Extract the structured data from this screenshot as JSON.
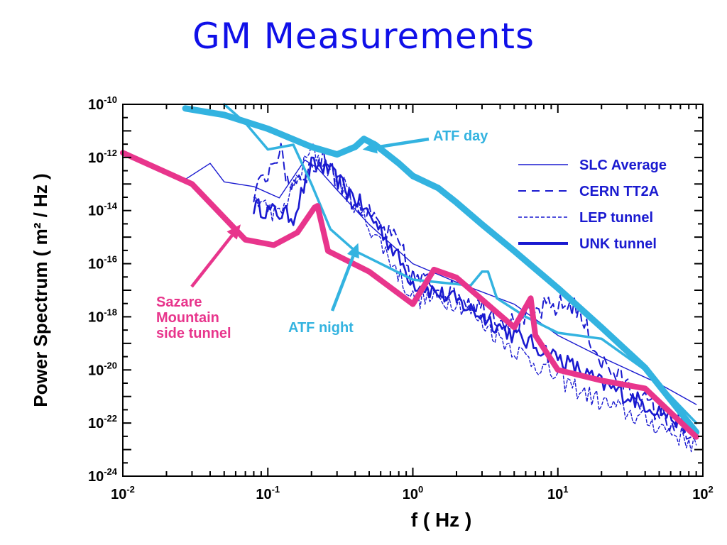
{
  "slide": {
    "title": "GM Measurements"
  },
  "colors": {
    "title": "#1010e8",
    "atf": "#33b3e0",
    "sazare": "#e8358c",
    "measured": "#1a1ad0"
  },
  "chart_data": {
    "type": "line",
    "title": "GM Measurements",
    "xlabel": "f  ( Hz )",
    "ylabel": "Power Spectrum ( m² / Hz )",
    "x_scale": "log",
    "y_scale": "log",
    "xlim": [
      0.01,
      100
    ],
    "ylim": [
      1e-24,
      1e-10
    ],
    "grid": false,
    "legend_position": "top-right",
    "x_ticks": [
      {
        "value": 0.01,
        "base": "10",
        "exp": "-2"
      },
      {
        "value": 0.1,
        "base": "10",
        "exp": "-1"
      },
      {
        "value": 1,
        "base": "10",
        "exp": "0"
      },
      {
        "value": 10,
        "base": "10",
        "exp": "1"
      },
      {
        "value": 100,
        "base": "10",
        "exp": "2"
      }
    ],
    "y_ticks": [
      {
        "value": 1e-10,
        "base": "10",
        "exp": "-10"
      },
      {
        "value": 1e-12,
        "base": "10",
        "exp": "-12"
      },
      {
        "value": 1e-14,
        "base": "10",
        "exp": "-14"
      },
      {
        "value": 1e-16,
        "base": "10",
        "exp": "-16"
      },
      {
        "value": 1e-18,
        "base": "10",
        "exp": "-18"
      },
      {
        "value": 1e-20,
        "base": "10",
        "exp": "-20"
      },
      {
        "value": 1e-22,
        "base": "10",
        "exp": "-22"
      },
      {
        "value": 1e-24,
        "base": "10",
        "exp": "-24"
      }
    ],
    "annotations": [
      {
        "id": "atf-day",
        "lines": [
          "ATF day"
        ],
        "color": "#33b3e0",
        "point_at": [
          0.45,
          2e-12
        ]
      },
      {
        "id": "atf-night",
        "lines": [
          "ATF night"
        ],
        "color": "#33b3e0",
        "point_at": [
          0.42,
          6e-16
        ]
      },
      {
        "id": "sazare",
        "lines": [
          "Sazare",
          "Mountain",
          "side tunnel"
        ],
        "color": "#e8358c",
        "point_at": [
          0.065,
          3e-15
        ]
      }
    ],
    "legend": [
      {
        "label": "SLC  Average",
        "style": "solid"
      },
      {
        "label": "CERN TT2A",
        "style": "dashed"
      },
      {
        "label": "LEP tunnel",
        "style": "dotted"
      },
      {
        "label": "UNK tunnel",
        "style": "thick"
      }
    ],
    "series": [
      {
        "id": "atf-day",
        "color": "#33b3e0",
        "width": 9,
        "style": "solid",
        "points": [
          [
            0.027,
            7e-11
          ],
          [
            0.05,
            4e-11
          ],
          [
            0.1,
            1.2e-11
          ],
          [
            0.2,
            2.5e-12
          ],
          [
            0.3,
            1.3e-12
          ],
          [
            0.4,
            2.5e-12
          ],
          [
            0.46,
            5e-12
          ],
          [
            0.55,
            3e-12
          ],
          [
            0.8,
            6e-13
          ],
          [
            1.0,
            2e-13
          ],
          [
            1.5,
            7e-14
          ],
          [
            2,
            2e-14
          ],
          [
            3,
            3e-15
          ],
          [
            5,
            3e-16
          ],
          [
            10,
            1.2e-17
          ],
          [
            20,
            4e-19
          ],
          [
            40,
            1.2e-20
          ],
          [
            90,
            4.5e-23
          ]
        ]
      },
      {
        "id": "atf-night",
        "color": "#33b3e0",
        "width": 3.5,
        "style": "solid",
        "points": [
          [
            0.05,
            1e-10
          ],
          [
            0.07,
            2e-11
          ],
          [
            0.1,
            2e-12
          ],
          [
            0.15,
            3e-12
          ],
          [
            0.2,
            1e-13
          ],
          [
            0.27,
            2e-15
          ],
          [
            0.4,
            3e-16
          ],
          [
            0.6,
            1e-16
          ],
          [
            1,
            2.5e-17
          ],
          [
            1.5,
            2e-17
          ],
          [
            2.5,
            1.5e-17
          ],
          [
            3,
            5e-17
          ],
          [
            3.3,
            5e-17
          ],
          [
            3.8,
            5e-18
          ],
          [
            6,
            1e-18
          ],
          [
            10,
            2.5e-19
          ],
          [
            20,
            1.5e-19
          ],
          [
            40,
            1e-20
          ],
          [
            90,
            1e-22
          ]
        ]
      },
      {
        "id": "sazare",
        "color": "#e8358c",
        "width": 8,
        "style": "solid",
        "points": [
          [
            0.01,
            1.5e-12
          ],
          [
            0.03,
            1e-13
          ],
          [
            0.07,
            8e-16
          ],
          [
            0.11,
            5e-16
          ],
          [
            0.16,
            1.5e-15
          ],
          [
            0.21,
            1.3e-14
          ],
          [
            0.22,
            1.5e-14
          ],
          [
            0.26,
            3e-16
          ],
          [
            0.5,
            5e-17
          ],
          [
            1,
            3e-18
          ],
          [
            1.4,
            6e-17
          ],
          [
            2,
            3e-17
          ],
          [
            5,
            4e-19
          ],
          [
            6.5,
            5e-18
          ],
          [
            7,
            2e-19
          ],
          [
            10,
            1e-20
          ],
          [
            20,
            4e-21
          ],
          [
            40,
            2e-21
          ],
          [
            90,
            3e-23
          ]
        ]
      },
      {
        "id": "slc-average",
        "color": "#1a1ad0",
        "width": 1.4,
        "style": "solid",
        "points": [
          [
            0.027,
            1.5e-13
          ],
          [
            0.04,
            6e-13
          ],
          [
            0.05,
            1.2e-13
          ],
          [
            0.08,
            8e-14
          ],
          [
            0.12,
            3e-14
          ],
          [
            0.18,
            8e-13
          ],
          [
            0.22,
            4e-13
          ],
          [
            0.3,
            6e-14
          ],
          [
            0.5,
            3e-15
          ],
          [
            1,
            1e-16
          ],
          [
            2,
            2e-17
          ],
          [
            5,
            3e-18
          ],
          [
            10,
            2e-19
          ],
          [
            20,
            3e-20
          ],
          [
            50,
            3e-21
          ],
          [
            90,
            5e-22
          ]
        ]
      },
      {
        "id": "cern-tt2a",
        "color": "#1a1ad0",
        "width": 2,
        "style": "dashed",
        "noise": 0.9,
        "points": [
          [
            0.08,
            3e-14
          ],
          [
            0.12,
            2e-12
          ],
          [
            0.14,
            1e-13
          ],
          [
            0.2,
            4e-13
          ],
          [
            0.25,
            1e-12
          ],
          [
            0.35,
            4e-14
          ],
          [
            0.5,
            6e-15
          ],
          [
            0.8,
            5e-16
          ],
          [
            1,
            3e-17
          ],
          [
            2,
            8e-18
          ],
          [
            5,
            5e-19
          ],
          [
            8,
            2e-18
          ],
          [
            13,
            3e-18
          ],
          [
            20,
            2e-20
          ],
          [
            40,
            6e-22
          ],
          [
            90,
            2e-23
          ]
        ]
      },
      {
        "id": "lep-tunnel",
        "color": "#1a1ad0",
        "width": 1.4,
        "style": "dotted",
        "noise": 0.8,
        "points": [
          [
            0.08,
            3e-14
          ],
          [
            0.12,
            6e-15
          ],
          [
            0.2,
            2e-12
          ],
          [
            0.3,
            2e-13
          ],
          [
            0.6,
            6e-16
          ],
          [
            1,
            5e-18
          ],
          [
            2,
            4e-18
          ],
          [
            5,
            6e-20
          ],
          [
            10,
            5e-21
          ],
          [
            20,
            6e-22
          ],
          [
            50,
            8e-23
          ],
          [
            90,
            1.5e-23
          ]
        ]
      },
      {
        "id": "unk-tunnel",
        "color": "#1a1ad0",
        "width": 2.6,
        "style": "solid",
        "noise": 0.7,
        "points": [
          [
            0.08,
            1.5e-14
          ],
          [
            0.1,
            1e-14
          ],
          [
            0.15,
            6e-15
          ],
          [
            0.2,
            5e-13
          ],
          [
            0.25,
            4e-13
          ],
          [
            0.4,
            3e-14
          ],
          [
            0.6,
            2e-15
          ],
          [
            1,
            2e-17
          ],
          [
            2,
            4e-18
          ],
          [
            5,
            2e-19
          ],
          [
            10,
            3e-20
          ],
          [
            20,
            3e-21
          ],
          [
            50,
            3e-22
          ],
          [
            90,
            5e-23
          ]
        ]
      }
    ]
  }
}
